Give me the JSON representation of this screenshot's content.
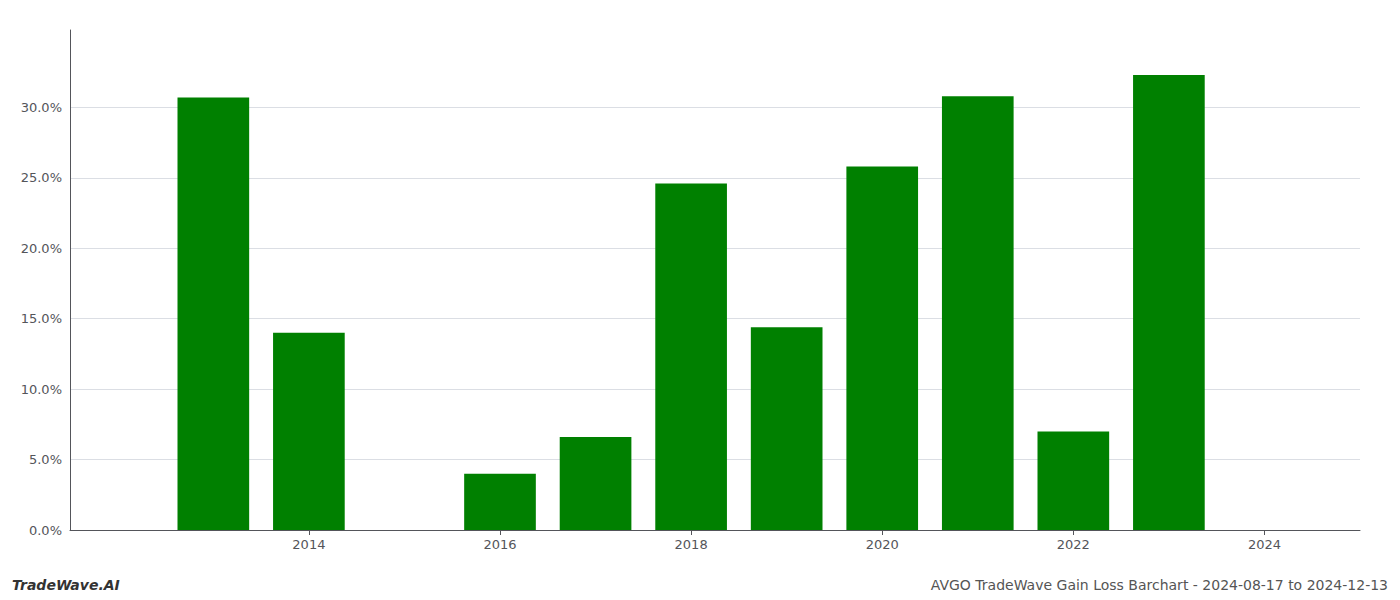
{
  "chart_data": {
    "type": "bar",
    "x": [
      2013,
      2014,
      2016,
      2017,
      2018,
      2019,
      2020,
      2021,
      2022,
      2023
    ],
    "values": [
      0.307,
      0.14,
      0.04,
      0.066,
      0.246,
      0.144,
      0.258,
      0.308,
      0.07,
      0.323
    ],
    "color": "#008000",
    "xlim": [
      2011.5,
      2025.0
    ],
    "xticks": [
      2014,
      2016,
      2018,
      2020,
      2022,
      2024
    ],
    "ylim": [
      0,
      0.355
    ],
    "yticks": [
      {
        "value": 0.0,
        "label": "0.0%"
      },
      {
        "value": 0.05,
        "label": "5.0%"
      },
      {
        "value": 0.1,
        "label": "10.0%"
      },
      {
        "value": 0.15,
        "label": "15.0%"
      },
      {
        "value": 0.2,
        "label": "20.0%"
      },
      {
        "value": 0.25,
        "label": "25.0%"
      },
      {
        "value": 0.3,
        "label": "30.0%"
      }
    ],
    "grid": true,
    "annotations": [
      "TradeWave.AI",
      "AVGO TradeWave Gain Loss Barchart - 2024-08-17 to 2024-12-13"
    ]
  }
}
